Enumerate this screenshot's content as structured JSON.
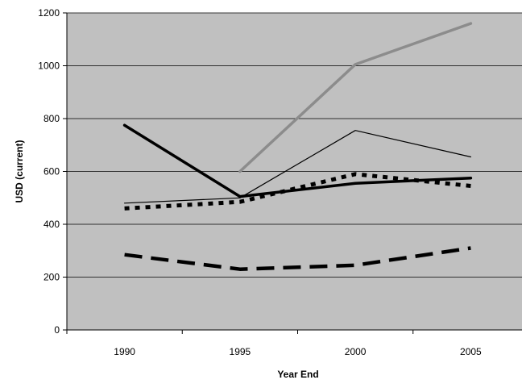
{
  "chart_data": {
    "type": "line",
    "xlabel": "Year End",
    "ylabel": "USD (current)",
    "categories": [
      "1990",
      "1995",
      "2000",
      "2005"
    ],
    "ylim": [
      0,
      1200
    ],
    "yticks": [
      "0",
      "200",
      "400",
      "600",
      "800",
      "1000",
      "1200"
    ],
    "grid": true,
    "legend": "none",
    "plot_background": "#c0c0c0",
    "series": [
      {
        "values": [
          null,
          600,
          1005,
          1160
        ],
        "color": "#8c8c8c",
        "style": "solid-thick"
      },
      {
        "values": [
          775,
          505,
          555,
          575
        ],
        "color": "#000000",
        "style": "solid-thick"
      },
      {
        "values": [
          480,
          500,
          755,
          655
        ],
        "color": "#000000",
        "style": "solid-thin"
      },
      {
        "values": [
          460,
          485,
          590,
          545
        ],
        "color": "#000000",
        "style": "dotted-thick"
      },
      {
        "values": [
          285,
          230,
          245,
          310
        ],
        "color": "#000000",
        "style": "dashed-thick"
      }
    ]
  }
}
